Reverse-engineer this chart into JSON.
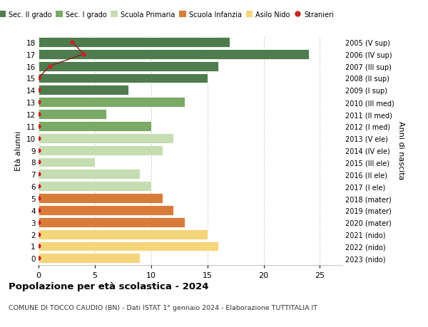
{
  "ages": [
    18,
    17,
    16,
    15,
    14,
    13,
    12,
    11,
    10,
    9,
    8,
    7,
    6,
    5,
    4,
    3,
    2,
    1,
    0
  ],
  "right_labels": [
    "2005 (V sup)",
    "2006 (IV sup)",
    "2007 (III sup)",
    "2008 (II sup)",
    "2009 (I sup)",
    "2010 (III med)",
    "2011 (II med)",
    "2012 (I med)",
    "2013 (V ele)",
    "2014 (IV ele)",
    "2015 (III ele)",
    "2016 (II ele)",
    "2017 (I ele)",
    "2018 (mater)",
    "2019 (mater)",
    "2020 (mater)",
    "2021 (nido)",
    "2022 (nido)",
    "2023 (nido)"
  ],
  "bar_values": [
    17,
    24,
    16,
    15,
    8,
    13,
    6,
    10,
    12,
    11,
    5,
    9,
    10,
    11,
    12,
    13,
    15,
    16,
    9
  ],
  "bar_colors": [
    "#4e7c4e",
    "#4e7c4e",
    "#4e7c4e",
    "#4e7c4e",
    "#4e7c4e",
    "#7aaa65",
    "#7aaa65",
    "#7aaa65",
    "#c5ddb0",
    "#c5ddb0",
    "#c5ddb0",
    "#c5ddb0",
    "#c5ddb0",
    "#d97c3a",
    "#d97c3a",
    "#d97c3a",
    "#f5d57a",
    "#f5d57a",
    "#f5d57a"
  ],
  "stranieri_x": [
    3,
    4,
    1,
    0,
    0,
    0,
    0,
    0,
    0,
    0,
    0,
    0,
    0,
    0,
    0,
    0,
    0,
    0,
    0
  ],
  "stranieri_line_ages": [
    15,
    16,
    17,
    18
  ],
  "stranieri_line_x": [
    0,
    1,
    4,
    3
  ],
  "legend_labels": [
    "Sec. II grado",
    "Sec. I grado",
    "Scuola Primaria",
    "Scuola Infanzia",
    "Asilo Nido",
    "Stranieri"
  ],
  "legend_colors": [
    "#4e7c4e",
    "#7aaa65",
    "#c5ddb0",
    "#d97c3a",
    "#f5d57a",
    "#cc2222"
  ],
  "title": "Popolazione per età scolastica - 2024",
  "subtitle": "COMUNE DI TOCCO CAUDIO (BN) - Dati ISTAT 1° gennaio 2024 - Elaborazione TUTTITALIA.IT",
  "ylabel": "Età alunni",
  "ylabel2": "Anni di nascita",
  "xlim_max": 27,
  "xticks": [
    0,
    5,
    10,
    15,
    20,
    25
  ],
  "bg_color": "#ffffff",
  "grid_color": "#cccccc",
  "bar_height": 0.82
}
